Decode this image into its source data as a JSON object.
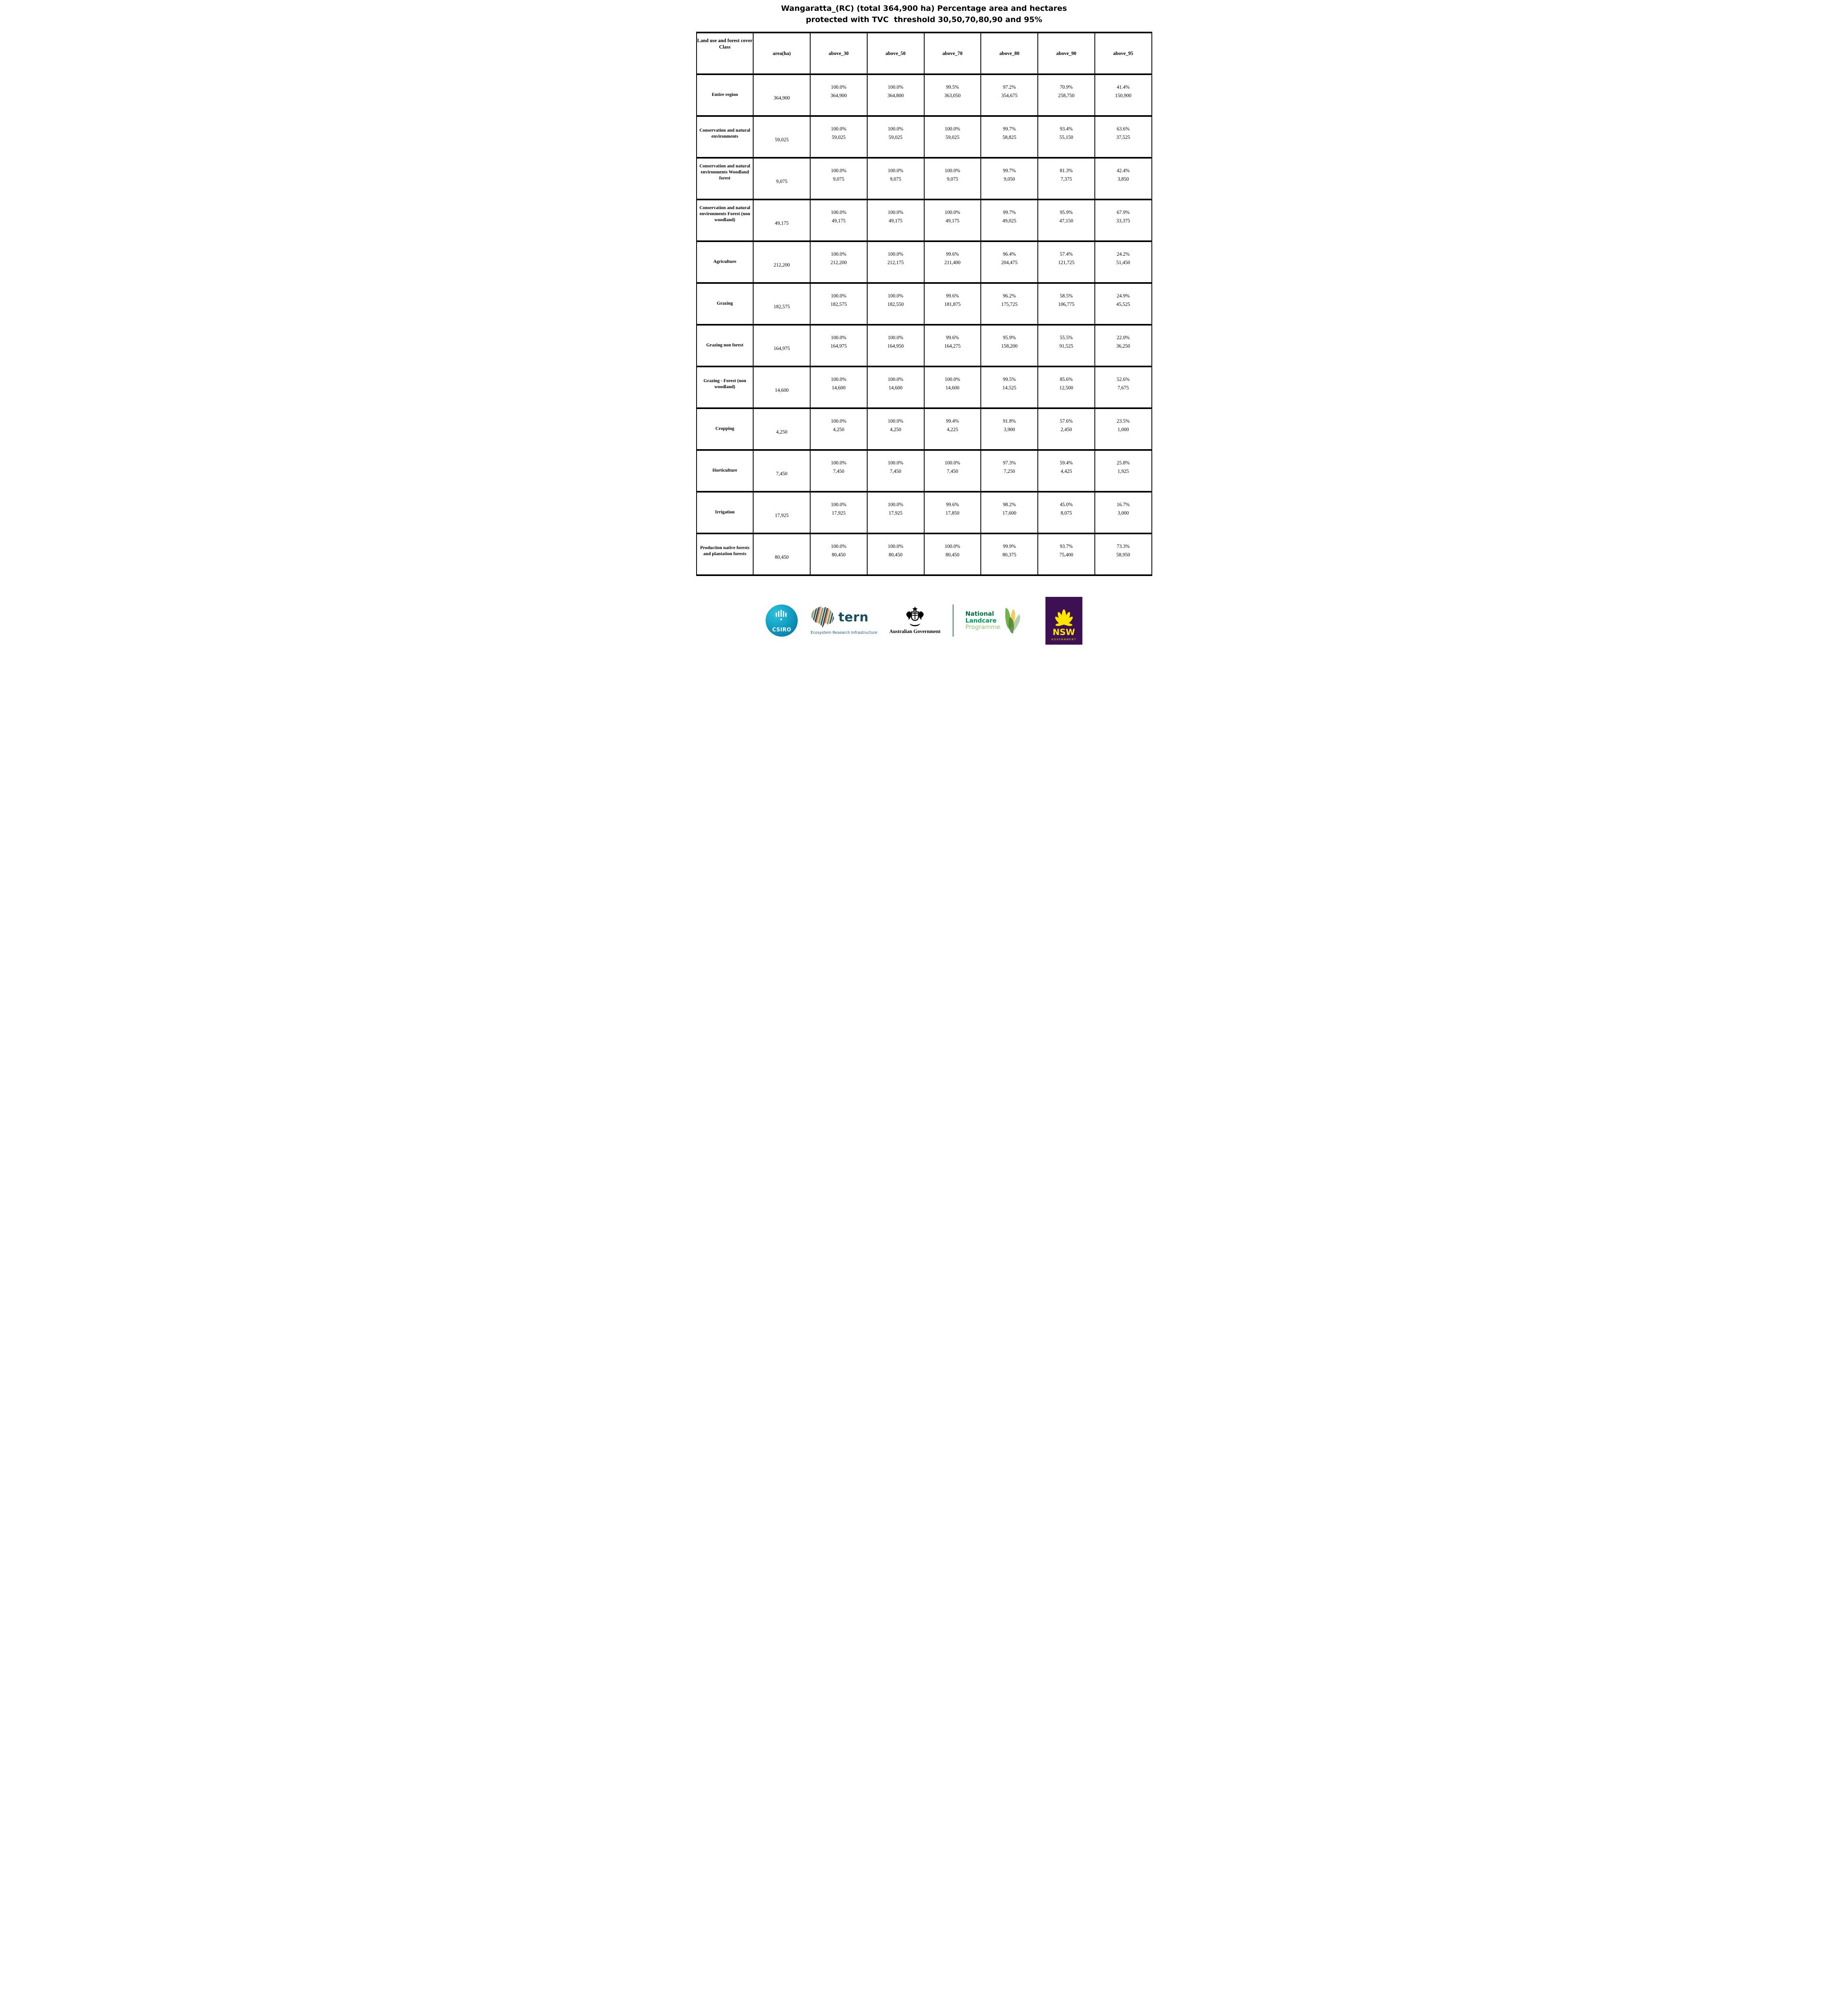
{
  "title": {
    "line1": "Wangaratta_(RC) (total 364,900 ha) Percentage area and hectares",
    "line2": "protected with TVC  threshold 30,50,70,80,90 and 95%"
  },
  "chart_data": {
    "type": "table",
    "title": "Wangaratta_(RC) (total 364,900 ha) Percentage area and hectares protected with TVC threshold 30,50,70,80,90 and 95%",
    "columns": [
      "Land use and forest cover Class",
      "area(ha)",
      "above_30",
      "above_50",
      "above_70",
      "above_80",
      "above_90",
      "above_95"
    ],
    "rows": [
      {
        "label": "Entire region",
        "area": "364,900",
        "cells": [
          [
            "100.0%",
            "364,900"
          ],
          [
            "100.0%",
            "364,800"
          ],
          [
            "99.5%",
            "363,050"
          ],
          [
            "97.2%",
            "354,675"
          ],
          [
            "70.9%",
            "258,750"
          ],
          [
            "41.4%",
            "150,900"
          ]
        ]
      },
      {
        "label": "Conservation and natural environments",
        "area": "59,025",
        "cells": [
          [
            "100.0%",
            "59,025"
          ],
          [
            "100.0%",
            "59,025"
          ],
          [
            "100.0%",
            "59,025"
          ],
          [
            "99.7%",
            "58,825"
          ],
          [
            "93.4%",
            "55,150"
          ],
          [
            "63.6%",
            "37,525"
          ]
        ]
      },
      {
        "label": "Conservation and natural environments Woodland forest",
        "area": "9,075",
        "cells": [
          [
            "100.0%",
            "9,075"
          ],
          [
            "100.0%",
            "9,075"
          ],
          [
            "100.0%",
            "9,075"
          ],
          [
            "99.7%",
            "9,050"
          ],
          [
            "81.3%",
            "7,375"
          ],
          [
            "42.4%",
            "3,850"
          ]
        ]
      },
      {
        "label": "Conservation and natural environments Forest (non woodland)",
        "area": "49,175",
        "cells": [
          [
            "100.0%",
            "49,175"
          ],
          [
            "100.0%",
            "49,175"
          ],
          [
            "100.0%",
            "49,175"
          ],
          [
            "99.7%",
            "49,025"
          ],
          [
            "95.9%",
            "47,150"
          ],
          [
            "67.9%",
            "33,375"
          ]
        ]
      },
      {
        "label": "Agriculture",
        "area": "212,200",
        "cells": [
          [
            "100.0%",
            "212,200"
          ],
          [
            "100.0%",
            "212,175"
          ],
          [
            "99.6%",
            "211,400"
          ],
          [
            "96.4%",
            "204,475"
          ],
          [
            "57.4%",
            "121,725"
          ],
          [
            "24.2%",
            "51,450"
          ]
        ]
      },
      {
        "label": "Grazing",
        "area": "182,575",
        "cells": [
          [
            "100.0%",
            "182,575"
          ],
          [
            "100.0%",
            "182,550"
          ],
          [
            "99.6%",
            "181,875"
          ],
          [
            "96.2%",
            "175,725"
          ],
          [
            "58.5%",
            "106,775"
          ],
          [
            "24.9%",
            "45,525"
          ]
        ]
      },
      {
        "label": "Grazing non forest",
        "area": "164,975",
        "cells": [
          [
            "100.0%",
            "164,975"
          ],
          [
            "100.0%",
            "164,950"
          ],
          [
            "99.6%",
            "164,275"
          ],
          [
            "95.9%",
            "158,200"
          ],
          [
            "55.5%",
            "91,525"
          ],
          [
            "22.0%",
            "36,250"
          ]
        ]
      },
      {
        "label": "Grazing - Forest (non woodland)",
        "area": "14,600",
        "cells": [
          [
            "100.0%",
            "14,600"
          ],
          [
            "100.0%",
            "14,600"
          ],
          [
            "100.0%",
            "14,600"
          ],
          [
            "99.5%",
            "14,525"
          ],
          [
            "85.6%",
            "12,500"
          ],
          [
            "52.6%",
            "7,675"
          ]
        ]
      },
      {
        "label": "Cropping",
        "area": "4,250",
        "cells": [
          [
            "100.0%",
            "4,250"
          ],
          [
            "100.0%",
            "4,250"
          ],
          [
            "99.4%",
            "4,225"
          ],
          [
            "91.8%",
            "3,900"
          ],
          [
            "57.6%",
            "2,450"
          ],
          [
            "23.5%",
            "1,000"
          ]
        ]
      },
      {
        "label": "Horticulture",
        "area": "7,450",
        "cells": [
          [
            "100.0%",
            "7,450"
          ],
          [
            "100.0%",
            "7,450"
          ],
          [
            "100.0%",
            "7,450"
          ],
          [
            "97.3%",
            "7,250"
          ],
          [
            "59.4%",
            "4,425"
          ],
          [
            "25.8%",
            "1,925"
          ]
        ]
      },
      {
        "label": "Irrigation",
        "area": "17,925",
        "cells": [
          [
            "100.0%",
            "17,925"
          ],
          [
            "100.0%",
            "17,925"
          ],
          [
            "99.6%",
            "17,850"
          ],
          [
            "98.2%",
            "17,600"
          ],
          [
            "45.0%",
            "8,075"
          ],
          [
            "16.7%",
            "3,000"
          ]
        ]
      },
      {
        "label": "Production native forests and plantation forests",
        "area": "80,450",
        "cells": [
          [
            "100.0%",
            "80,450"
          ],
          [
            "100.0%",
            "80,450"
          ],
          [
            "100.0%",
            "80,450"
          ],
          [
            "99.9%",
            "80,375"
          ],
          [
            "93.7%",
            "75,400"
          ],
          [
            "73.3%",
            "58,950"
          ]
        ]
      }
    ]
  },
  "footer": {
    "csiro": {
      "label": "CSIRO"
    },
    "tern": {
      "name": "tern",
      "subtitle": "Ecosystem Research Infrastructure"
    },
    "aus_gov": {
      "label": "Australian Government"
    },
    "landcare": {
      "line1": "National",
      "line2": "Landcare",
      "line3": "Programme"
    },
    "nsw": {
      "name": "NSW",
      "sub": "GOVERNMENT"
    }
  },
  "colors": {
    "csiro_teal": "#13a0c4",
    "tern_teal": "#15505e",
    "landcare_dark_green": "#00703c",
    "landcare_green": "#009a57",
    "landcare_light_green": "#8fca66",
    "nsw_purple": "#3c1053",
    "nsw_yellow": "#ffe600",
    "table_line": "#000000"
  }
}
